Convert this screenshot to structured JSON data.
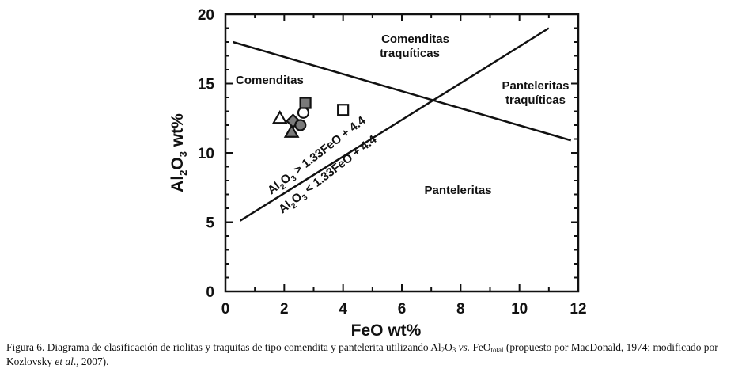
{
  "chart_data": {
    "type": "scatter",
    "xlabel": "FeO wt%",
    "ylabel": {
      "main": "Al",
      "sub1": "2",
      "mid": "O",
      "sub2": "3",
      "tail": " wt%"
    },
    "xlim": [
      0,
      12
    ],
    "ylim": [
      0,
      20
    ],
    "x_ticks": [
      "0",
      "2",
      "4",
      "6",
      "8",
      "10",
      "12"
    ],
    "y_ticks": [
      "0",
      "5",
      "10",
      "15",
      "20"
    ],
    "grid": false,
    "lines": [
      {
        "name": "comendite-pantellerite-divider",
        "x1": 0.5,
        "y1": 5.1,
        "x2": 11.0,
        "y2": 19.0
      },
      {
        "name": "trachyte-divider",
        "x1": 0.25,
        "y1": 18.0,
        "x2": 11.75,
        "y2": 10.9
      }
    ],
    "regions": {
      "comenditas": "Comenditas",
      "comenditas_traq_line1": "Comenditas",
      "comenditas_traq_line2": "traquíticas",
      "pantelleritas_traq_line1": "Panteleritas",
      "pantelleritas_traq_line2": "traquíticas",
      "pantelleritas": "Panteleritas"
    },
    "equations": {
      "upper": {
        "a": "Al",
        "s1": "2",
        "o": "O",
        "s2": "3",
        "rest": " > 1.33FeO + 4.4"
      },
      "lower": {
        "a": "Al",
        "s1": "2",
        "o": "O",
        "s2": "3",
        "rest": " < 1.33FeO + 4.4"
      }
    },
    "points": [
      {
        "marker": "triangle-up",
        "fill": "none",
        "x": 1.85,
        "y": 12.5
      },
      {
        "marker": "triangle-up",
        "fill": "gray",
        "x": 2.25,
        "y": 11.5
      },
      {
        "marker": "diamond",
        "fill": "gray",
        "x": 2.3,
        "y": 12.3
      },
      {
        "marker": "circle",
        "fill": "gray",
        "x": 2.55,
        "y": 12.0
      },
      {
        "marker": "circle",
        "fill": "none",
        "x": 2.65,
        "y": 12.9
      },
      {
        "marker": "square",
        "fill": "gray",
        "x": 2.72,
        "y": 13.6
      },
      {
        "marker": "square",
        "fill": "none",
        "x": 4.0,
        "y": 13.1
      }
    ]
  },
  "colors": {
    "gray_fill": "#7a7a7a",
    "stroke": "#111111"
  },
  "caption": {
    "prefix": "Figura 6. Diagrama de clasificación de riolitas y traquitas de tipo comendita y pantelerita utilizando Al",
    "s1": "2",
    "o": "O",
    "s2": "3",
    "vs": " vs.",
    "feo": " FeO",
    "total": "total",
    "mid": " (propuesto por MacDonald, 1974; modificado por Kozlovsky ",
    "etal": "et al",
    "end": "., 2007)."
  }
}
